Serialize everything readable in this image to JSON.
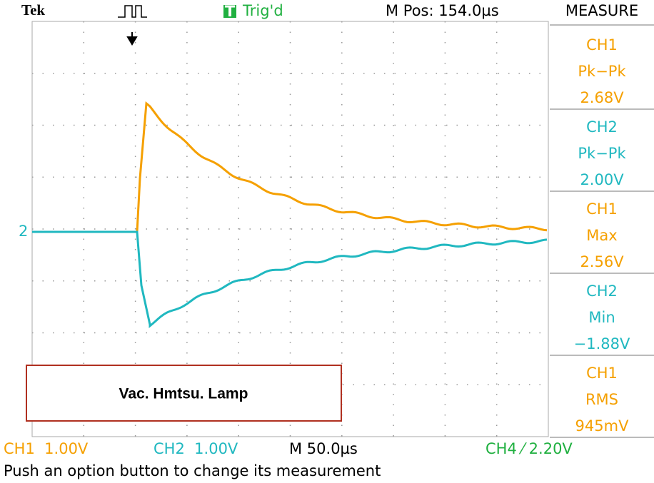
{
  "header": {
    "brand": "Tek",
    "trigger_badge": "T",
    "status": "Trig'd",
    "position": "M Pos: 154.0µs"
  },
  "measure": {
    "title": "MEASURE",
    "items": [
      {
        "source": "CH1",
        "type": "Pk−Pk",
        "value": "2.68V"
      },
      {
        "source": "CH2",
        "type": "Pk−Pk",
        "value": "2.00V"
      },
      {
        "source": "CH1",
        "type": "Max",
        "value": "2.56V"
      },
      {
        "source": "CH2",
        "type": "Min",
        "value": "−1.88V"
      },
      {
        "source": "CH1",
        "type": "RMS",
        "value": "945mV"
      }
    ]
  },
  "channel_marker": "2",
  "annotation": "Vac. Hmtsu. Lamp",
  "footer": {
    "ch1": "CH1  1.00V",
    "ch2": "CH2  1.00V",
    "timebase": "M 50.0µs",
    "trigger": "CH4 ⁄ 2.20V"
  },
  "message": "Push an option button to change its measurement"
}
